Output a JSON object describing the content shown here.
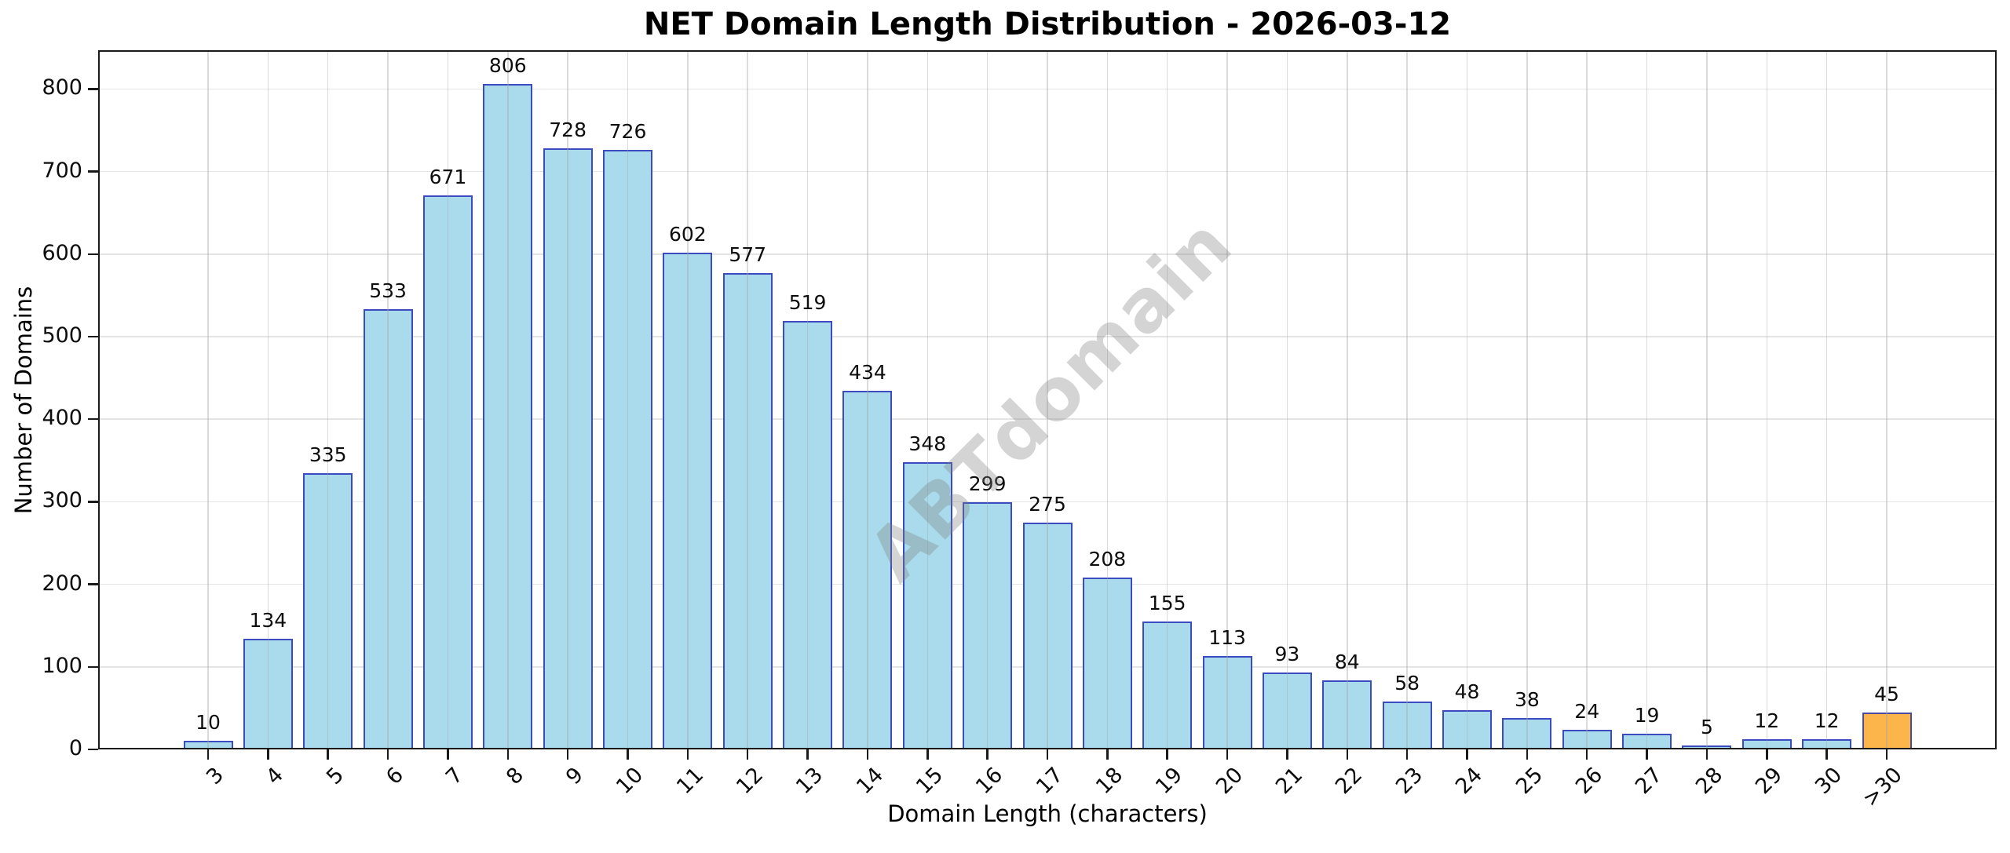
{
  "watermark": "ABTdomain",
  "chart_data": {
    "type": "bar",
    "title": "NET Domain Length Distribution - 2026-03-12",
    "xlabel": "Domain Length (characters)",
    "ylabel": "Number of Domains",
    "categories": [
      "3",
      "4",
      "5",
      "6",
      "7",
      "8",
      "9",
      "10",
      "11",
      "12",
      "13",
      "14",
      "15",
      "16",
      "17",
      "18",
      "19",
      "20",
      "21",
      "22",
      "23",
      "24",
      "25",
      "26",
      "27",
      "28",
      "29",
      "30",
      ">30"
    ],
    "values": [
      10,
      134,
      335,
      533,
      671,
      806,
      728,
      726,
      602,
      577,
      519,
      434,
      348,
      299,
      275,
      208,
      155,
      113,
      93,
      84,
      58,
      48,
      38,
      24,
      19,
      5,
      12,
      12,
      45
    ],
    "bar_value_labels_shown": true,
    "ylim": [
      0,
      847
    ],
    "yticks": [
      0,
      100,
      200,
      300,
      400,
      500,
      600,
      700,
      800
    ],
    "grid": true,
    "legend_position": "none",
    "highlight_category": ">30",
    "x_tick_rotation_deg": 45,
    "colors": {
      "bar_fill": "#a9dbec",
      "bar_edge": "#3b4cc0",
      "highlight_fill": "#fbb54b",
      "highlight_edge": "#4a4a9e",
      "grid_horizontal": "#e4e4e4",
      "grid_vertical": "#a5a5a5",
      "background": "#ffffff",
      "text": "#000000"
    }
  }
}
